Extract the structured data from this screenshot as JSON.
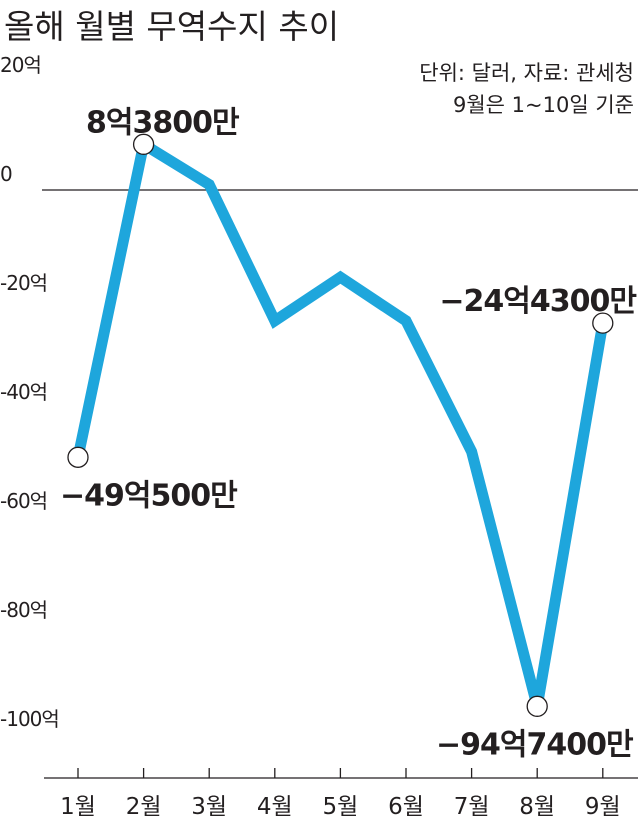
{
  "chart_data": {
    "type": "line",
    "title": "올해 월별 무역수지 추이",
    "notes": [
      "단위: 달러, 자료: 관세청",
      "9월은 1~10일 기준"
    ],
    "categories": [
      "1월",
      "2월",
      "3월",
      "4월",
      "5월",
      "6월",
      "7월",
      "8월",
      "9월"
    ],
    "values": [
      -49.05,
      8.38,
      1.0,
      -24.0,
      -16.0,
      -24.0,
      -48.0,
      -94.74,
      -24.43
    ],
    "unit": "억 달러",
    "ylim": [
      -108,
      23
    ],
    "yticks": [
      20,
      0,
      -20,
      -40,
      -60,
      -80,
      -100
    ],
    "ytick_labels": [
      "20억",
      "0",
      "-20억",
      "-40억",
      "-60억",
      "-80억",
      "-100억"
    ],
    "data_labels": [
      {
        "index": 0,
        "text": "−49억500만",
        "position": "below"
      },
      {
        "index": 1,
        "text": "8억3800만",
        "position": "above"
      },
      {
        "index": 7,
        "text": "−94억7400만",
        "position": "below"
      },
      {
        "index": 8,
        "text": "−24억4300만",
        "position": "above"
      }
    ],
    "line_color": "#1ea6dc",
    "grid": false
  }
}
